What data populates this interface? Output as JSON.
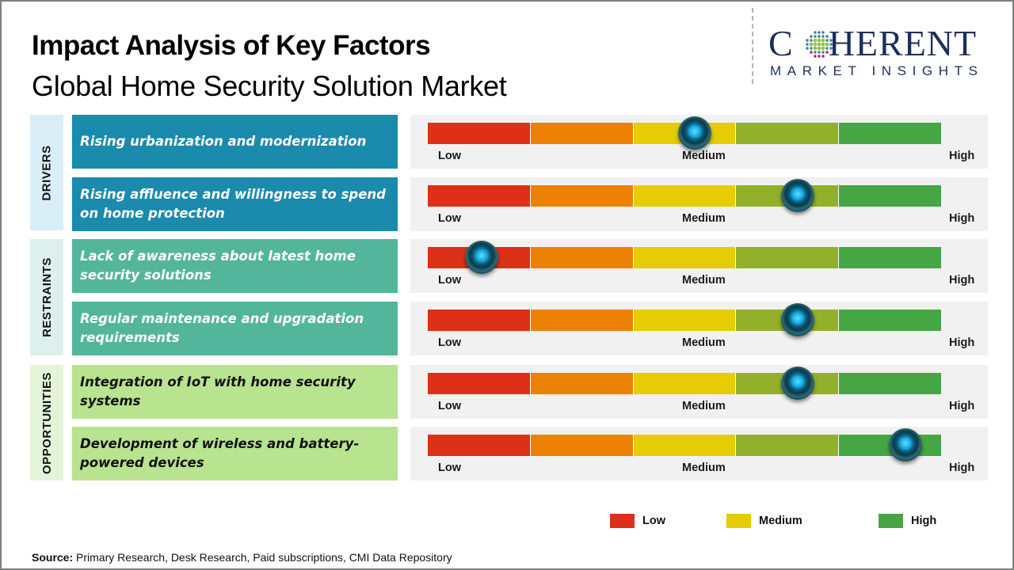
{
  "header": {
    "title": "Impact Analysis of Key Factors",
    "subtitle": "Global Home Security Solution Market"
  },
  "logo": {
    "word_first": "C",
    "word_rest": "HERENT",
    "tagline": "MARKET INSIGHTS",
    "globe_colors": [
      "#3a7da0",
      "#8dc63f",
      "#c2185b"
    ]
  },
  "colors": {
    "segments": [
      "#de2f19",
      "#ec8104",
      "#e5cc04",
      "#92b02a",
      "#46a644"
    ],
    "drivers_cat_bg": "#daeef7",
    "drivers_bg": "#1a8aad",
    "restraints_cat_bg": "#ddf0ec",
    "restraints_bg": "#53b59a",
    "opportunities_cat_bg": "#e4f4d9",
    "opportunities_bg": "#b8e38f"
  },
  "scale_labels": {
    "low": "Low",
    "medium": "Medium",
    "high": "High"
  },
  "categories": [
    {
      "label": "DRIVERS"
    },
    {
      "label": "RESTRAINTS"
    },
    {
      "label": "OPPORTUNITIES"
    }
  ],
  "chart_data": {
    "type": "gauge",
    "title": "Impact Analysis of Key Factors",
    "subtitle": "Global Home Security Solution Market",
    "scale": [
      "Low",
      "Medium",
      "High"
    ],
    "range": [
      0,
      1
    ],
    "factors": [
      {
        "category": "DRIVERS",
        "label": "Rising urbanization  and modernization",
        "impact": 0.52
      },
      {
        "category": "DRIVERS",
        "label": "Rising affluence and willingness  to spend on home protection",
        "impact": 0.72
      },
      {
        "category": "RESTRAINTS",
        "label": "Lack of awareness  about latest home security solutions",
        "impact": 0.105
      },
      {
        "category": "RESTRAINTS",
        "label": "Regular maintenance and upgradation requirements",
        "impact": 0.72
      },
      {
        "category": "OPPORTUNITIES",
        "label": "Integration  of IoT with home  security systems",
        "impact": 0.72
      },
      {
        "category": "OPPORTUNITIES",
        "label": "Development  of wireless and battery-powered  devices",
        "impact": 0.93
      }
    ],
    "legend": [
      {
        "label": "Low",
        "color": "#de2f19"
      },
      {
        "label": "Medium",
        "color": "#e5cc04"
      },
      {
        "label": "High",
        "color": "#46a644"
      }
    ],
    "legend_position": "bottom-right"
  },
  "source": {
    "label": "Source:",
    "text": " Primary Research, Desk Research, Paid subscriptions, CMI Data Repository"
  }
}
